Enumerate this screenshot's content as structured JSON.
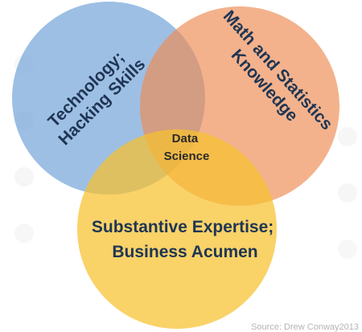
{
  "diagram": {
    "circles": [
      {
        "id": "technology",
        "color": "#6fa1d7"
      },
      {
        "id": "math",
        "color": "#ee8d55"
      },
      {
        "id": "business",
        "color": "#f6c12e"
      }
    ],
    "labels": {
      "technology_line1": "Technology;",
      "technology_line2": "Hacking Skills",
      "math_line1": "Math and Statistics",
      "math_line2": "Knowledge",
      "center_line1": "Data",
      "center_line2": "Science",
      "business_line1": "Substantive Expertise;",
      "business_line2": "Business Acumen"
    },
    "source": "Source: Drew Conway2013"
  }
}
